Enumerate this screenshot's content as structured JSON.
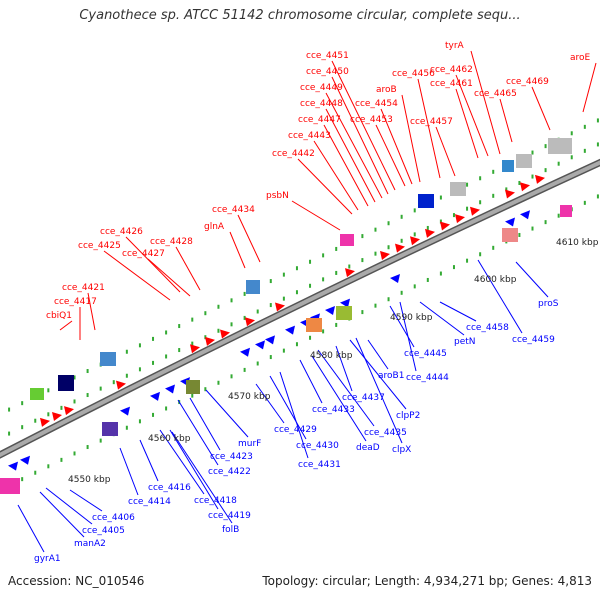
{
  "title": "Cyanothece sp. ATCC 51142 chromosome circular, complete sequ...",
  "footer": {
    "accession": "Accession: NC_010546",
    "summary": "Topology: circular; Length: 4,934,271 bp; Genes: 4,813"
  },
  "colors": {
    "forward_strand": "#ff0000",
    "reverse_strand": "#0000ff",
    "tick": "#33aa33",
    "backbone": "#888888"
  },
  "ruler_labels": [
    "4550 kbp",
    "4560 kbp",
    "4570 kbp",
    "4580 kbp",
    "4590 kbp",
    "4600 kbp",
    "4610 kbp"
  ],
  "forward_labels": [
    "gyrA1",
    "manA2",
    "cce_4405",
    "cce_4406",
    "cce_4414",
    "cce_4416",
    "cce_4418",
    "cce_4419",
    "folB",
    "cce_4422",
    "cce_4423",
    "murF",
    "cce_4429",
    "cce_4430",
    "cce_4431",
    "cce_4433",
    "deaD",
    "cce_4435",
    "cce_4437",
    "clpP2",
    "clpX",
    "aroB1",
    "cce_4445",
    "cce_4444",
    "petN",
    "cce_4458",
    "cce_4459",
    "proS"
  ],
  "reverse_labels": [
    "cbiQ1",
    "cce_4417",
    "cce_4421",
    "cce_4425",
    "cce_4426",
    "cce_4427",
    "cce_4428",
    "glnA",
    "cce_4434",
    "psbN",
    "cce_4442",
    "cce_4443",
    "cce_4447",
    "cce_4448",
    "cce_4449",
    "cce_4450",
    "cce_4451",
    "cce_4453",
    "cce_4454",
    "aroB",
    "cce_4456",
    "cce_4457",
    "tyrA",
    "cce_4462",
    "cce_4461",
    "cce_4465",
    "cce_4469",
    "aroE"
  ]
}
